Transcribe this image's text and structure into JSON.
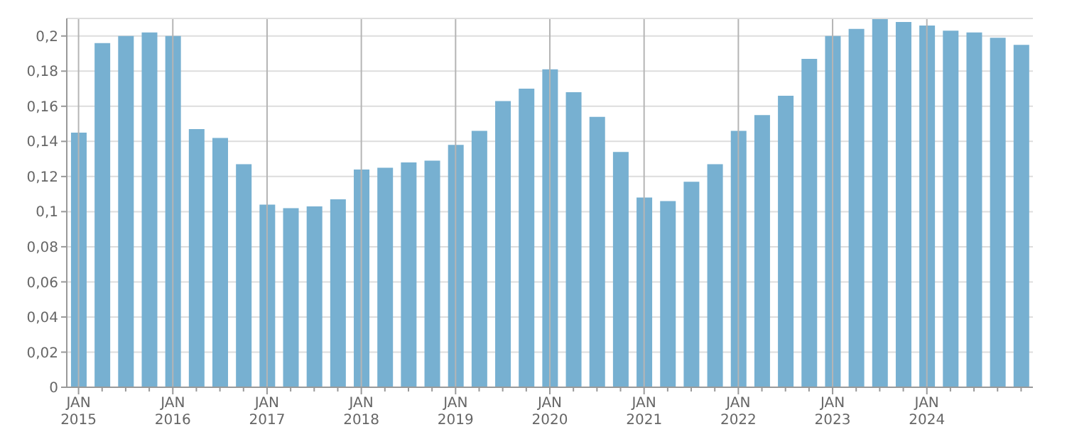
{
  "chart_data": {
    "type": "bar",
    "categories": [
      "JAN 2015",
      null,
      null,
      null,
      "JAN 2016",
      null,
      null,
      null,
      "JAN 2017",
      null,
      null,
      null,
      "JAN 2018",
      null,
      null,
      null,
      "JAN 2019",
      null,
      null,
      null,
      "JAN 2020",
      null,
      null,
      null,
      "JAN 2021",
      null,
      null,
      null,
      "JAN 2022",
      null,
      null,
      null,
      "JAN 2023",
      null,
      null,
      null,
      "JAN 2024",
      null,
      null,
      null,
      null
    ],
    "values": [
      0.145,
      0.196,
      0.2,
      0.202,
      0.2,
      0.147,
      0.142,
      0.127,
      0.104,
      0.102,
      0.103,
      0.107,
      0.124,
      0.125,
      0.128,
      0.129,
      0.138,
      0.146,
      0.163,
      0.17,
      0.181,
      0.168,
      0.154,
      0.134,
      0.108,
      0.106,
      0.117,
      0.127,
      0.146,
      0.155,
      0.166,
      0.187,
      0.2,
      0.204,
      0.21,
      0.208,
      0.206,
      0.203,
      0.202,
      0.199,
      0.195
    ],
    "color": "#77b0d1",
    "ylim": [
      0,
      0.21
    ],
    "yticks": [
      0,
      {
        "value": 0.02,
        "label": "0,02"
      },
      {
        "value": 0.04,
        "label": "0,04"
      },
      {
        "value": 0.06,
        "label": "0,06"
      },
      {
        "value": 0.08,
        "label": "0,08"
      },
      {
        "value": 0.1,
        "label": "0,1"
      },
      {
        "value": 0.12,
        "label": "0,12"
      },
      {
        "value": 0.14,
        "label": "0,14"
      },
      {
        "value": 0.16,
        "label": "0,16"
      },
      {
        "value": 0.18,
        "label": "0,18"
      },
      {
        "value": 0.2,
        "label": "0,2"
      }
    ],
    "grid": true
  }
}
